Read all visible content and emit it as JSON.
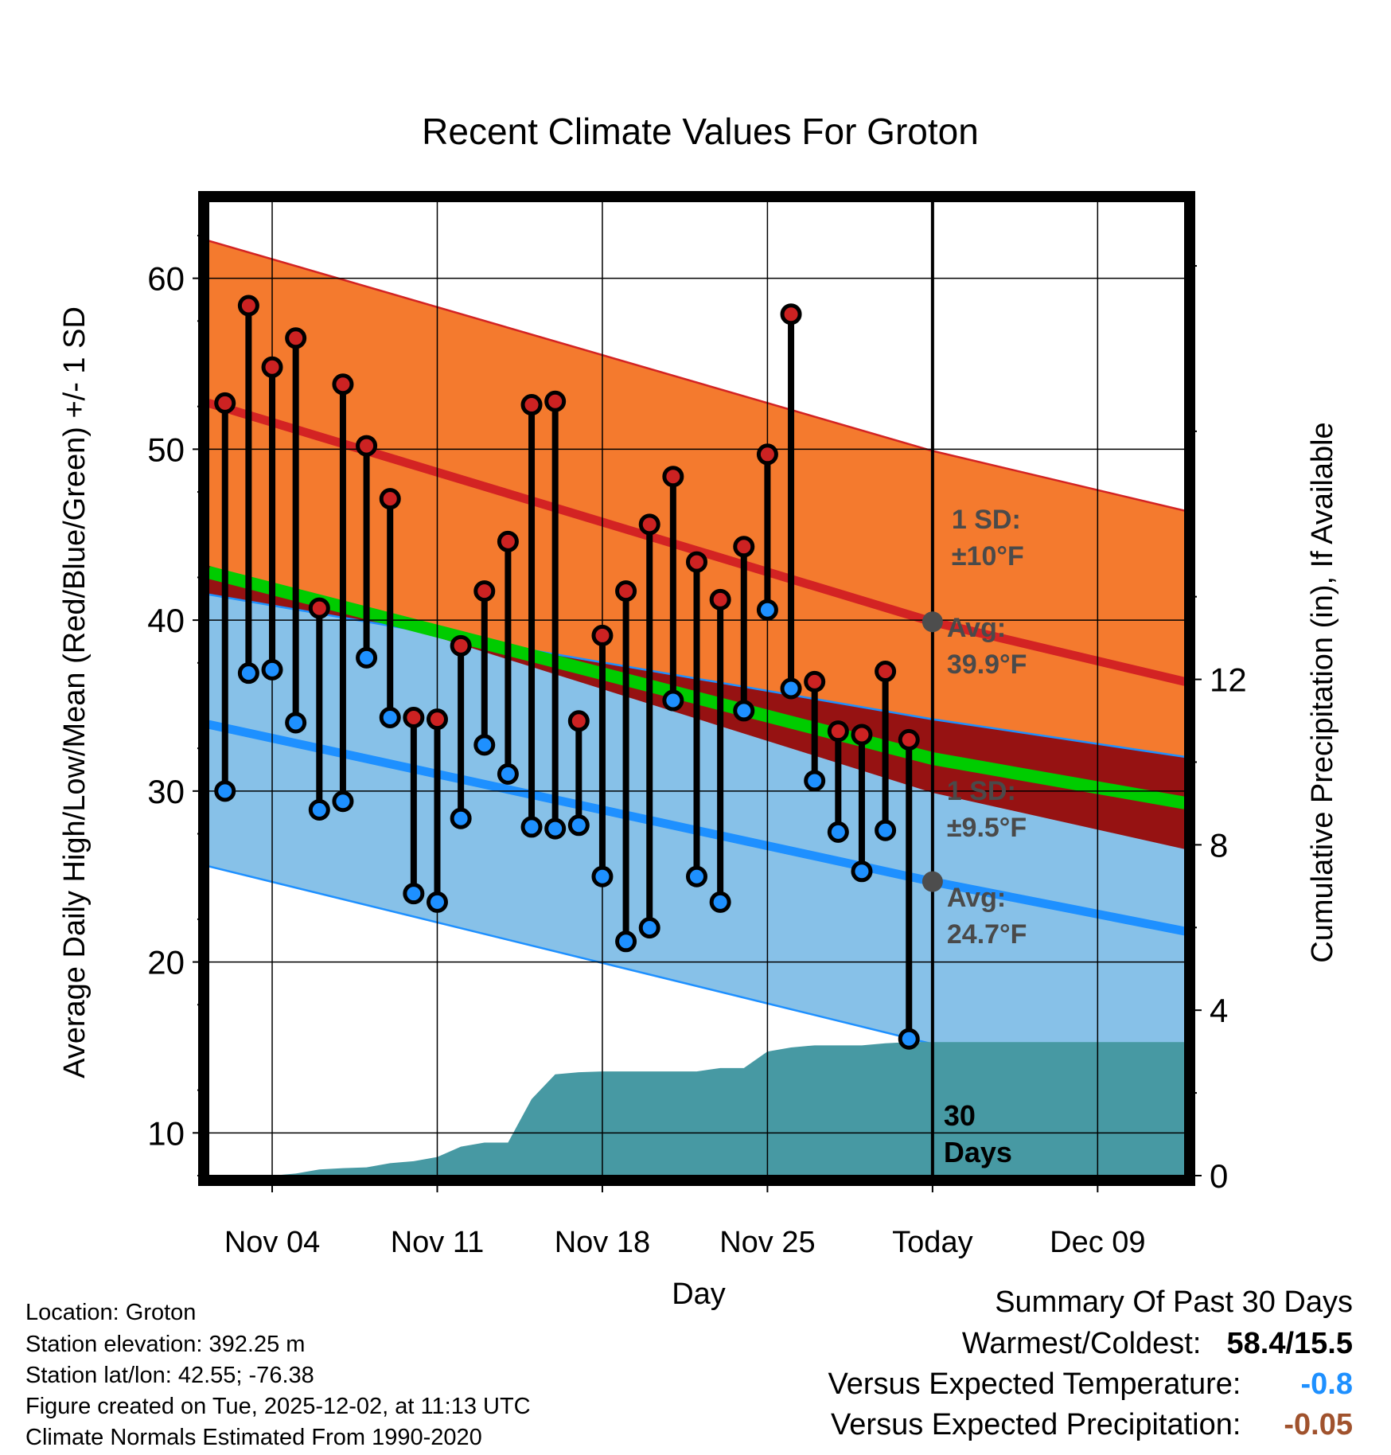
{
  "chart_data": {
    "type": "line",
    "title": "Recent Climate Values For Groton",
    "xlabel": "Day",
    "ylabel": "Average Daily High/Low/Mean (Red/Blue/Green) +/- 1 SD",
    "y2label": "Cumulative Precipitation (in), If Available",
    "xlim": [
      0.3,
      41.7
    ],
    "ylim": [
      7.5,
      64.5
    ],
    "y2lim": [
      0,
      23.56
    ],
    "x_ticks": [
      {
        "x": 3,
        "label": "Nov 04"
      },
      {
        "x": 10,
        "label": "Nov 11"
      },
      {
        "x": 17,
        "label": "Nov 18"
      },
      {
        "x": 24,
        "label": "Nov 25"
      },
      {
        "x": 31,
        "label": "Today"
      },
      {
        "x": 38,
        "label": "Dec 09"
      }
    ],
    "y_ticks": [
      10,
      20,
      30,
      40,
      50,
      60
    ],
    "y2_ticks": [
      0,
      4,
      8,
      12
    ],
    "today_x": 31,
    "normals": {
      "x": [
        0.3,
        31,
        41.7
      ],
      "high_avg": [
        52.7,
        39.9,
        36.4
      ],
      "high_upper": [
        62.2,
        49.9,
        46.4
      ],
      "high_lower": [
        43.2,
        29.9,
        26.6
      ],
      "low_avg": [
        33.9,
        24.7,
        21.8
      ],
      "low_upper": [
        41.5,
        34.2,
        32.0
      ],
      "low_lower": [
        25.6,
        15.2,
        12.3
      ],
      "mean_avg": [
        42.8,
        31.9,
        29.3
      ]
    },
    "observed": {
      "x": [
        1,
        2,
        3,
        4,
        5,
        6,
        7,
        8,
        9,
        10,
        11,
        12,
        13,
        14,
        15,
        16,
        17,
        18,
        19,
        20,
        21,
        22,
        23,
        24,
        25,
        26,
        27,
        28,
        29,
        30
      ],
      "high": [
        52.7,
        58.4,
        54.8,
        56.5,
        40.7,
        53.8,
        50.2,
        47.1,
        34.3,
        34.2,
        38.5,
        41.7,
        44.6,
        52.6,
        52.8,
        34.1,
        39.1,
        41.7,
        45.6,
        48.4,
        43.4,
        41.2,
        44.3,
        49.7,
        57.9,
        36.4,
        33.5,
        33.3,
        37.0,
        33.0
      ],
      "low": [
        30.0,
        36.9,
        37.1,
        34.0,
        28.9,
        29.4,
        37.8,
        34.3,
        24.0,
        23.5,
        28.4,
        32.7,
        31.0,
        27.9,
        27.8,
        28.0,
        25.0,
        21.2,
        22.0,
        35.3,
        25.0,
        23.5,
        34.7,
        40.6,
        36.0,
        30.6,
        27.6,
        25.3,
        27.7,
        15.5
      ]
    },
    "precip": {
      "x": [
        0.3,
        1,
        2,
        3,
        4,
        5,
        6,
        7,
        8,
        9,
        10,
        11,
        12,
        13,
        14,
        15,
        16,
        17,
        18,
        19,
        20,
        21,
        22,
        23,
        24,
        25,
        26,
        27,
        28,
        29,
        30,
        31,
        41.7
      ],
      "cumulative": [
        0,
        0,
        0,
        0,
        0.05,
        0.15,
        0.18,
        0.2,
        0.3,
        0.35,
        0.45,
        0.7,
        0.8,
        0.8,
        1.85,
        2.45,
        2.5,
        2.52,
        2.52,
        2.52,
        2.52,
        2.52,
        2.6,
        2.6,
        3.0,
        3.1,
        3.15,
        3.15,
        3.15,
        3.2,
        3.23,
        3.23,
        3.23
      ]
    },
    "annotations": {
      "high_sd": [
        "1 SD:",
        "±10°F"
      ],
      "high_avg": [
        "Avg:",
        "39.9°F"
      ],
      "low_sd": [
        "1 SD:",
        "±9.5°F"
      ],
      "low_avg": [
        "Avg:",
        "24.7°F"
      ],
      "days": [
        "30",
        "Days"
      ]
    }
  },
  "colors": {
    "high_band": "#f47a2e",
    "high_line": "#d32323",
    "low_band": "#87c1e8",
    "low_line": "#1e90ff",
    "overlap": "#961212",
    "mean": "#00cc00",
    "precip": "#4799a3",
    "high_marker": "#cc2222",
    "low_marker": "#1e90ff",
    "annotation": "#4a4a4a",
    "temp_departure": "#1e90ff",
    "precip_departure": "#a0522d"
  },
  "footer": {
    "location": "Location: Groton",
    "elevation": "Station elevation: 392.25 m",
    "latlon": "Station lat/lon: 42.55; -76.38",
    "created": "Figure created on Tue, 2025-12-02, at 11:13 UTC",
    "normals": "Climate Normals Estimated From 1990-2020"
  },
  "summary": {
    "title": "Summary Of Past 30 Days",
    "warm_cold_label": "Warmest/Coldest:",
    "warm_cold_value": "58.4/15.5",
    "temp_label": "Versus Expected Temperature:",
    "temp_value": "-0.8",
    "precip_label": "Versus Expected Precipitation:",
    "precip_value": "-0.05"
  }
}
